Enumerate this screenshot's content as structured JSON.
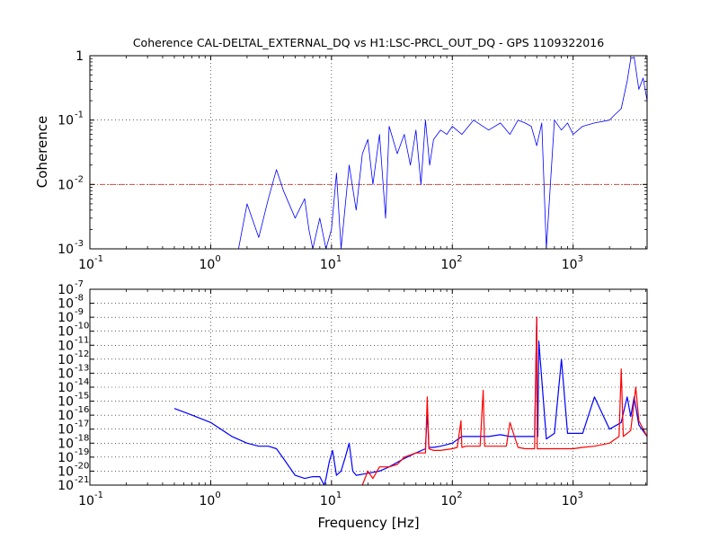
{
  "chart_data": [
    {
      "type": "line",
      "title": "Coherence CAL-DELTAL_EXTERNAL_DQ vs H1:LSC-PRCL_OUT_DQ - GPS 1109322016",
      "xlabel": "",
      "ylabel": "Coherence",
      "xscale": "log",
      "yscale": "log",
      "xlim": [
        0.1,
        4096
      ],
      "ylim": [
        0.001,
        1
      ],
      "grid": true,
      "x_ticks": [
        "10",
        "10",
        "10",
        "10",
        "10"
      ],
      "x_tick_exponents": [
        "-1",
        "0",
        "1",
        "2",
        "3"
      ],
      "y_ticks": [
        "1",
        "10",
        "10",
        "10"
      ],
      "y_tick_exponents": [
        "0",
        "-1",
        "-2",
        "-3"
      ],
      "threshold_line": {
        "y": 0.01,
        "color": "#c0392b"
      },
      "series": [
        {
          "color": "#0000ff",
          "x": [
            1.7,
            2.0,
            2.5,
            3.0,
            3.5,
            4.0,
            5.0,
            6.0,
            6.5,
            7.0,
            8.0,
            9.0,
            10.0,
            11.0,
            12.0,
            14.0,
            16.0,
            18.0,
            20.0,
            22.0,
            25.0,
            28.0,
            30.0,
            35.0,
            40.0,
            45.0,
            50.0,
            55.0,
            60.0,
            65.0,
            70.0,
            80.0,
            90.0,
            100.0,
            120.0,
            150.0,
            200.0,
            250.0,
            300.0,
            350.0,
            400.0,
            450.0,
            500.0,
            550.0,
            600.0,
            700.0,
            800.0,
            900.0,
            1000.0,
            1200.0,
            1500.0,
            2000.0,
            2200.0,
            2500.0,
            2800.0,
            3000.0,
            3200.0,
            3500.0,
            3800.0,
            4096.0
          ],
          "y": [
            0.001,
            0.005,
            0.0015,
            0.006,
            0.017,
            0.008,
            0.003,
            0.006,
            0.002,
            0.001,
            0.003,
            0.001,
            0.002,
            0.015,
            0.001,
            0.02,
            0.004,
            0.03,
            0.05,
            0.01,
            0.06,
            0.003,
            0.08,
            0.03,
            0.06,
            0.02,
            0.07,
            0.01,
            0.1,
            0.02,
            0.05,
            0.07,
            0.06,
            0.08,
            0.06,
            0.1,
            0.07,
            0.09,
            0.06,
            0.1,
            0.09,
            0.08,
            0.04,
            0.09,
            0.001,
            0.1,
            0.07,
            0.09,
            0.06,
            0.08,
            0.09,
            0.1,
            0.12,
            0.15,
            0.4,
            0.9,
            0.95,
            0.3,
            0.45,
            0.2
          ]
        }
      ]
    },
    {
      "type": "line",
      "title": "",
      "xlabel": "Frequency [Hz]",
      "ylabel": "",
      "xscale": "log",
      "yscale": "log",
      "xlim": [
        0.1,
        4096
      ],
      "ylim": [
        1e-21,
        1e-07
      ],
      "grid": true,
      "x_ticks": [
        "10",
        "10",
        "10",
        "10",
        "10"
      ],
      "x_tick_exponents": [
        "-1",
        "0",
        "1",
        "2",
        "3"
      ],
      "y_ticks": [
        "10",
        "10",
        "10",
        "10",
        "10",
        "10",
        "10",
        "10",
        "10",
        "10",
        "10",
        "10",
        "10",
        "10",
        "10"
      ],
      "y_tick_exponents": [
        "-7",
        "-8",
        "-9",
        "-10",
        "-11",
        "-12",
        "-13",
        "-14",
        "-15",
        "-16",
        "-17",
        "-18",
        "-19",
        "-20",
        "-21"
      ],
      "series": [
        {
          "color": "#0000ff",
          "x": [
            0.5,
            0.7,
            1.0,
            1.5,
            2.0,
            2.5,
            3.0,
            3.5,
            4.0,
            5.0,
            6.0,
            7.0,
            8.0,
            8.7,
            9.0,
            9.6,
            10.2,
            11.0,
            12.0,
            13.0,
            14.0,
            15.0,
            16.0,
            20.0,
            25.0,
            30.0,
            40.0,
            50.0,
            60.0,
            62.0,
            64.0,
            70.0,
            80.0,
            100.0,
            120.0,
            150.0,
            180.0,
            200.0,
            250.0,
            300.0,
            400.0,
            480.0,
            500.0,
            505.0,
            510.0,
            520.0,
            600.0,
            700.0,
            800.0,
            900.0,
            1000.0,
            1200.0,
            1500.0,
            2000.0,
            2500.0,
            2800.0,
            3000.0,
            3200.0,
            3500.0,
            4096.0
          ],
          "y": [
            3e-16,
            1e-16,
            3e-17,
            3e-18,
            1e-18,
            6e-19,
            6e-19,
            4e-19,
            8e-20,
            5e-21,
            3e-21,
            4e-21,
            4e-21,
            1e-21,
            3e-21,
            5e-20,
            3e-19,
            5e-21,
            1e-20,
            1e-19,
            1e-18,
            1e-20,
            5e-21,
            7e-21,
            1e-20,
            2e-20,
            8e-20,
            2e-19,
            4e-19,
            2e-16,
            5e-19,
            5e-19,
            6e-19,
            1e-18,
            3e-18,
            3e-18,
            3e-18,
            3e-18,
            4e-18,
            3e-18,
            3e-18,
            3e-18,
            1e-09,
            3e-18,
            3e-18,
            2e-11,
            2e-18,
            5e-18,
            1e-12,
            5e-18,
            5e-18,
            5e-18,
            2e-15,
            1e-17,
            3e-17,
            2e-15,
            8e-17,
            2e-15,
            2e-17,
            3e-18
          ]
        },
        {
          "color": "#ff0000",
          "x": [
            18.0,
            20.0,
            22.0,
            25.0,
            30.0,
            35.0,
            40.0,
            50.0,
            55.0,
            60.0,
            62.0,
            64.0,
            70.0,
            80.0,
            100.0,
            110.0,
            118.0,
            120.0,
            130.0,
            150.0,
            170.0,
            180.0,
            185.0,
            200.0,
            250.0,
            280.0,
            300.0,
            350.0,
            400.0,
            450.0,
            480.0,
            500.0,
            505.0,
            510.0,
            600.0,
            800.0,
            1000.0,
            1200.0,
            1500.0,
            2000.0,
            2400.0,
            2500.0,
            2600.0,
            3000.0,
            3300.0,
            3500.0,
            4096.0
          ],
          "y": [
            1e-21,
            1e-20,
            3e-21,
            2e-20,
            2e-20,
            3e-20,
            1e-19,
            2e-19,
            2e-19,
            2e-19,
            2e-15,
            4e-19,
            3e-19,
            3e-19,
            4e-19,
            5e-19,
            4e-17,
            5e-19,
            6e-19,
            6e-19,
            6e-19,
            6e-15,
            6e-19,
            6e-19,
            6e-19,
            6e-19,
            3e-17,
            5e-19,
            4e-19,
            4e-19,
            4e-19,
            1e-09,
            4e-19,
            4e-19,
            4e-19,
            4e-19,
            4e-19,
            5e-19,
            6e-19,
            1e-18,
            3e-18,
            2e-13,
            3e-18,
            8e-18,
            1e-14,
            4e-17,
            3e-18
          ]
        }
      ]
    }
  ]
}
